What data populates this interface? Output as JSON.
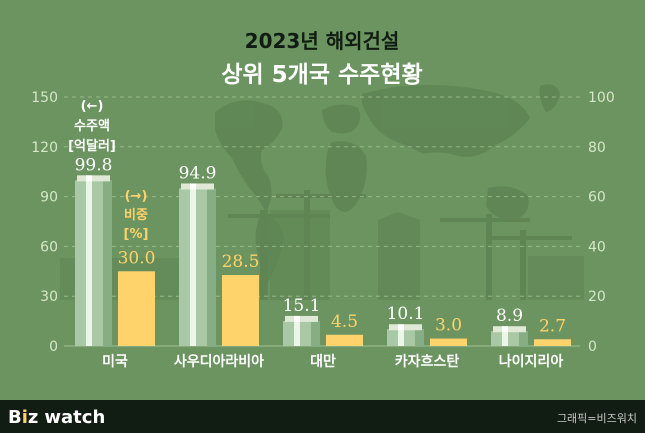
{
  "title_line1": "2023년 해외건설",
  "title_line2": "상위 5개국 수주현황",
  "left_axis_label": [
    "(←)",
    "수주액",
    "[억달러]"
  ],
  "right_axis_label": [
    "(→)",
    "비중",
    "[%]"
  ],
  "source": "그래픽=비즈워치",
  "brand": {
    "b": "B",
    "i": "i",
    "z": "z",
    "watch": "watch"
  },
  "colors": {
    "background": "#6b9460",
    "footer": "#111d13",
    "amount_bar": "#a9c9a6",
    "share_bar": "#ffd36b",
    "amount_label": "#ffffff",
    "share_label": "#ffd36b",
    "axis_text": "#d6e6c9"
  },
  "chart_data": {
    "type": "bar",
    "title": "2023년 해외건설 상위 5개국 수주현황",
    "categories": [
      "미국",
      "사우디아라비아",
      "대만",
      "카자흐스탄",
      "나이지리아"
    ],
    "series": [
      {
        "name": "수주액 [억달러]",
        "axis": "left",
        "values": [
          99.8,
          94.9,
          15.1,
          10.1,
          8.9
        ],
        "labels": [
          "99.8",
          "94.9",
          "15.1",
          "10.1",
          "8.9"
        ]
      },
      {
        "name": "비중 [%]",
        "axis": "right",
        "values": [
          30.0,
          28.5,
          4.5,
          3.0,
          2.7
        ],
        "labels": [
          "30.0",
          "28.5",
          "4.5",
          "3.0",
          "2.7"
        ]
      }
    ],
    "left_axis": {
      "ylim": [
        0,
        150
      ],
      "ticks": [
        "0",
        "30",
        "60",
        "90",
        "120",
        "150"
      ]
    },
    "right_axis": {
      "ylim": [
        0,
        100
      ],
      "ticks": [
        "0",
        "20",
        "40",
        "60",
        "80",
        "100"
      ]
    },
    "grid": "dashed"
  }
}
